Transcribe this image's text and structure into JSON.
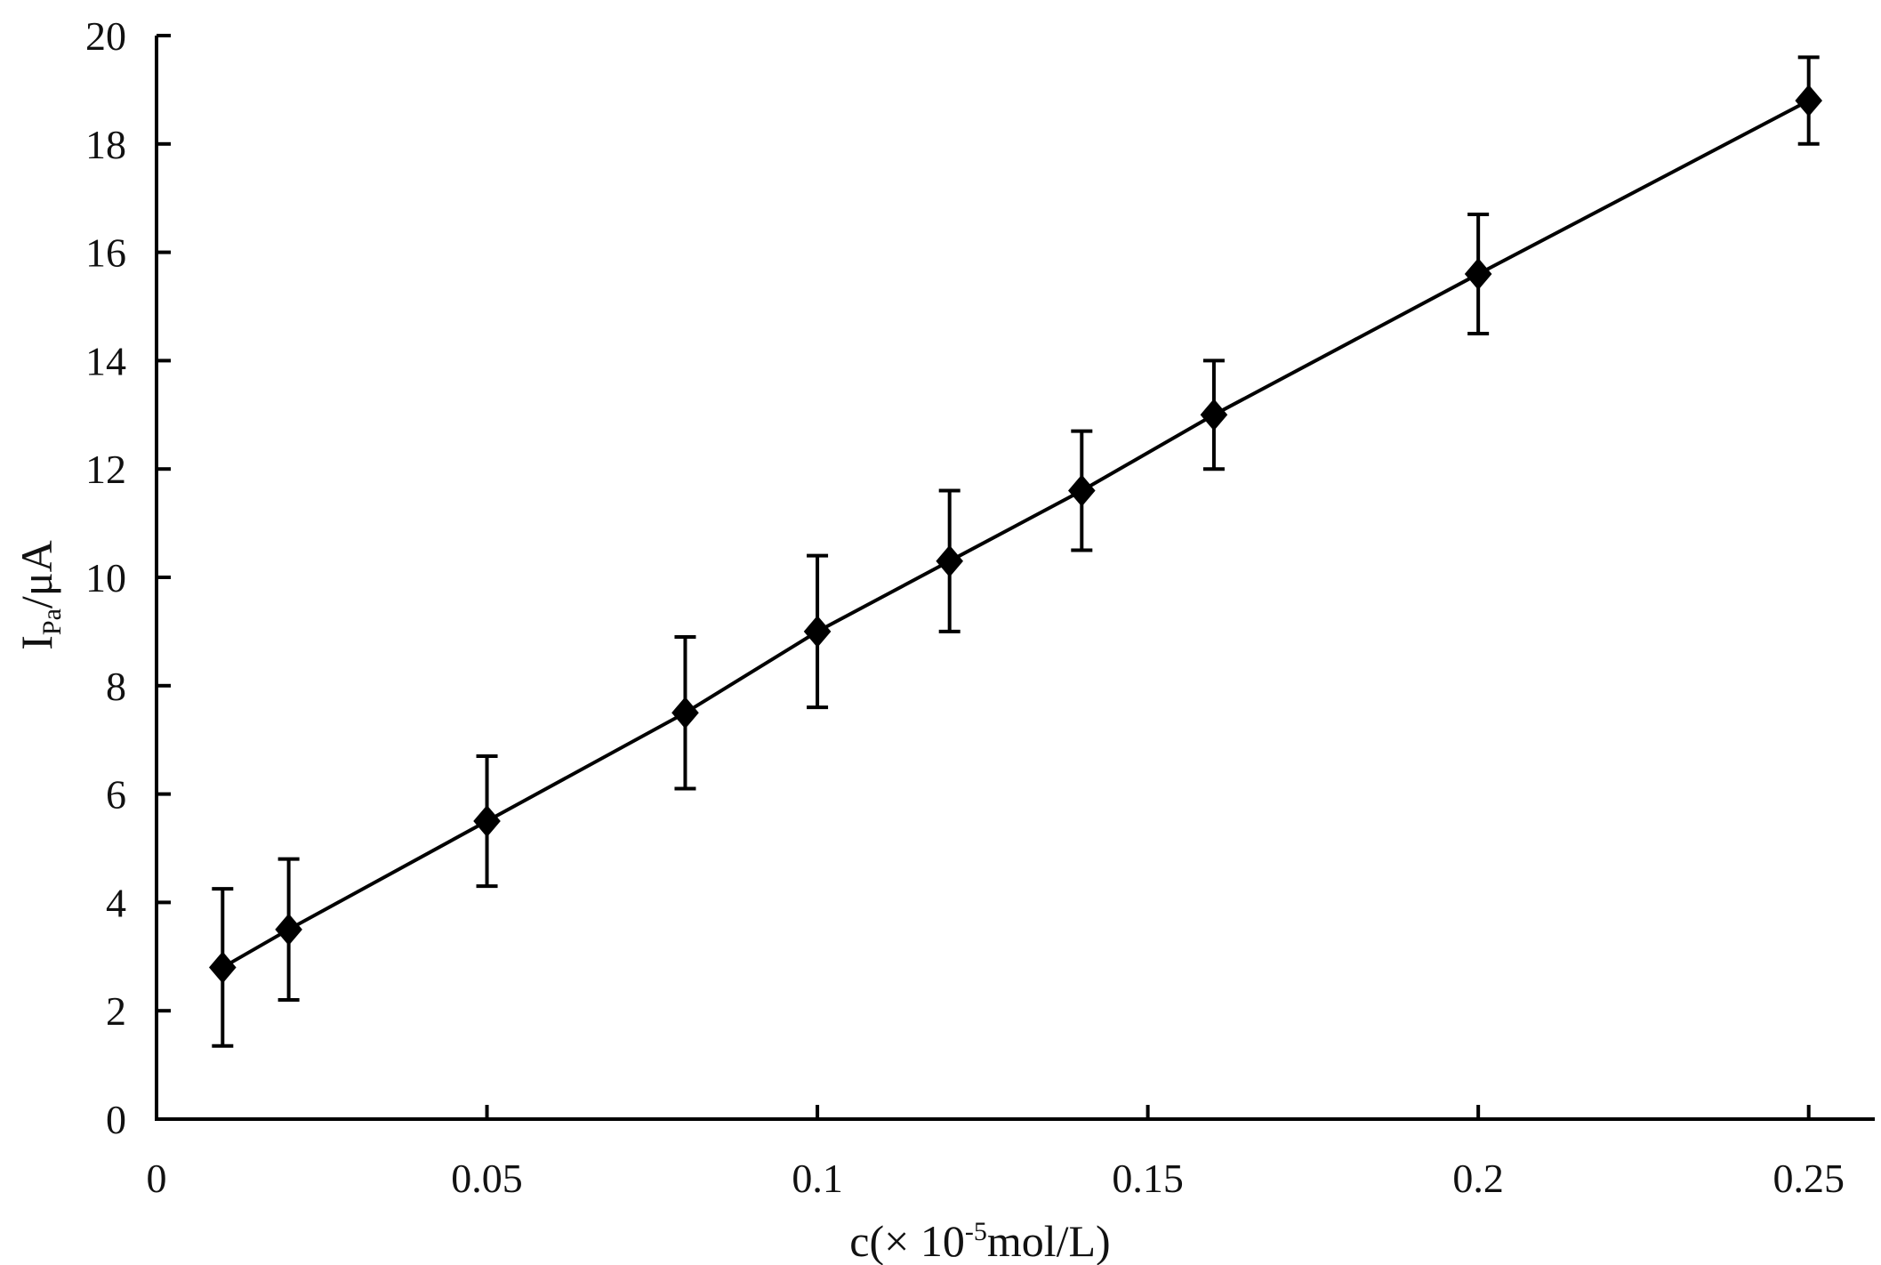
{
  "chart_data": {
    "type": "scatter",
    "xlabel": {
      "prefix": "c(",
      "times": "×",
      "base": " 10",
      "exponent": "-5",
      "unit": "mol/L)"
    },
    "ylabel": {
      "main": "I",
      "subscript": "Pa",
      "unit": "/μA"
    },
    "xlim": [
      0,
      0.26
    ],
    "ylim": [
      0,
      20
    ],
    "x_ticks": [
      0,
      0.05,
      0.1,
      0.15,
      0.2,
      0.25
    ],
    "x_tick_labels": [
      "0",
      "0.05",
      "0.1",
      "0.15",
      "0.2",
      "0.25"
    ],
    "y_ticks": [
      0,
      2,
      4,
      6,
      8,
      10,
      12,
      14,
      16,
      18,
      20
    ],
    "y_tick_labels": [
      "0",
      "2",
      "4",
      "6",
      "8",
      "10",
      "12",
      "14",
      "16",
      "18",
      "20"
    ],
    "grid": false,
    "series": [
      {
        "points": [
          {
            "x": 0.01,
            "y": 2.8,
            "err": 1.45
          },
          {
            "x": 0.02,
            "y": 3.5,
            "err": 1.3
          },
          {
            "x": 0.05,
            "y": 5.5,
            "err": 1.2
          },
          {
            "x": 0.08,
            "y": 7.5,
            "err": 1.4
          },
          {
            "x": 0.1,
            "y": 9.0,
            "err": 1.4
          },
          {
            "x": 0.12,
            "y": 10.3,
            "err": 1.3
          },
          {
            "x": 0.14,
            "y": 11.6,
            "err": 1.1
          },
          {
            "x": 0.16,
            "y": 13.0,
            "err": 1.0
          },
          {
            "x": 0.2,
            "y": 15.6,
            "err": 1.1
          },
          {
            "x": 0.25,
            "y": 18.8,
            "err": 0.8
          }
        ],
        "marker": "diamond",
        "color": "#000000"
      }
    ]
  }
}
